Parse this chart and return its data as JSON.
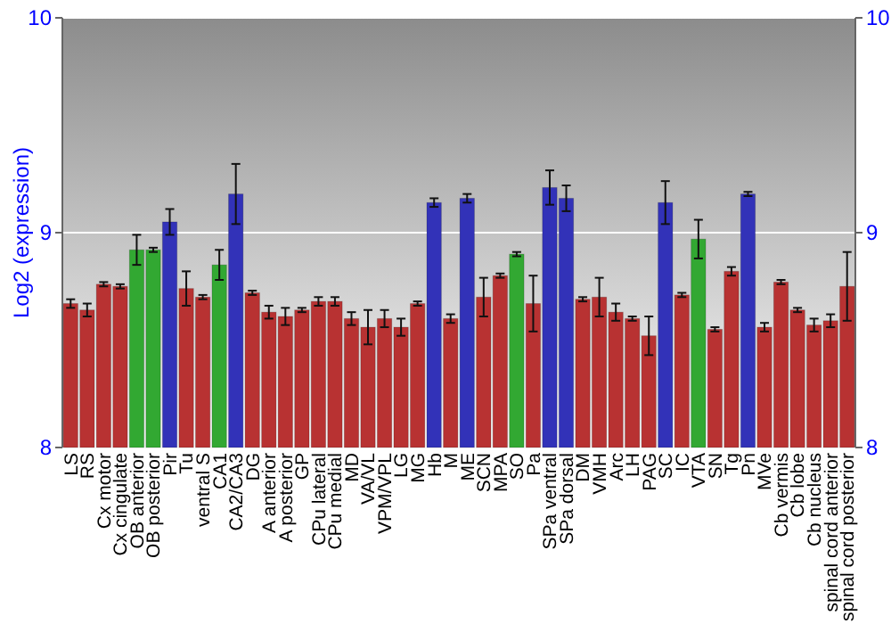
{
  "chart_data": {
    "type": "bar",
    "ylabel": "Log2 (expression)",
    "categories": [
      "LS",
      "RS",
      "Cx motor",
      "Cx cingulate",
      "OB anterior",
      "OB posterior",
      "Pir",
      "Tu",
      "ventral S",
      "CA1",
      "CA2/CA3",
      "DG",
      "A anterior",
      "A posterior",
      "GP",
      "CPu lateral",
      "CPu medial",
      "MD",
      "VA/VL",
      "VPM/VPL",
      "LG",
      "MG",
      "Hb",
      "M",
      "ME",
      "SCN",
      "MPA",
      "SO",
      "Pa",
      "SPa ventral",
      "SPa dorsal",
      "DM",
      "VMH",
      "Arc",
      "LH",
      "PAG",
      "SC",
      "IC",
      "VTA",
      "SN",
      "Tg",
      "Pn",
      "MVe",
      "Cb vermis",
      "Cb lobe",
      "Cb nucleus",
      "spinal cord anterior",
      "spinal cord posterior"
    ],
    "values": [
      8.67,
      8.64,
      8.76,
      8.75,
      8.92,
      8.92,
      9.05,
      8.74,
      8.7,
      8.85,
      9.18,
      8.72,
      8.63,
      8.61,
      8.64,
      8.68,
      8.68,
      8.6,
      8.56,
      8.6,
      8.56,
      8.67,
      9.14,
      8.6,
      9.16,
      8.7,
      8.8,
      8.9,
      8.67,
      9.21,
      9.16,
      8.69,
      8.7,
      8.63,
      8.6,
      8.52,
      9.14,
      8.71,
      8.97,
      8.55,
      8.82,
      9.18,
      8.56,
      8.77,
      8.64,
      8.57,
      8.59,
      8.75
    ],
    "errors": [
      0.02,
      0.03,
      0.01,
      0.01,
      0.07,
      0.01,
      0.06,
      0.08,
      0.01,
      0.07,
      0.14,
      0.01,
      0.03,
      0.04,
      0.01,
      0.02,
      0.02,
      0.03,
      0.08,
      0.04,
      0.04,
      0.01,
      0.02,
      0.02,
      0.02,
      0.09,
      0.01,
      0.01,
      0.13,
      0.08,
      0.06,
      0.01,
      0.09,
      0.04,
      0.01,
      0.09,
      0.1,
      0.01,
      0.09,
      0.01,
      0.02,
      0.01,
      0.02,
      0.01,
      0.01,
      0.03,
      0.03,
      0.16
    ],
    "colors": [
      "#b83232",
      "#b83232",
      "#b83232",
      "#b83232",
      "#32a832",
      "#32a832",
      "#3232b8",
      "#b83232",
      "#b83232",
      "#32a832",
      "#3232b8",
      "#b83232",
      "#b83232",
      "#b83232",
      "#b83232",
      "#b83232",
      "#b83232",
      "#b83232",
      "#b83232",
      "#b83232",
      "#b83232",
      "#b83232",
      "#3232b8",
      "#b83232",
      "#3232b8",
      "#b83232",
      "#b83232",
      "#32a832",
      "#b83232",
      "#3232b8",
      "#3232b8",
      "#b83232",
      "#b83232",
      "#b83232",
      "#b83232",
      "#b83232",
      "#3232b8",
      "#b83232",
      "#32a832",
      "#b83232",
      "#b83232",
      "#3232b8",
      "#b83232",
      "#b83232",
      "#b83232",
      "#b83232",
      "#b83232",
      "#b83232"
    ],
    "ylim": [
      8,
      10
    ],
    "yticks": [
      8,
      9,
      10
    ],
    "y2lim": [
      8,
      10
    ],
    "y2ticks": [
      8,
      9,
      10
    ],
    "grid": "y"
  }
}
